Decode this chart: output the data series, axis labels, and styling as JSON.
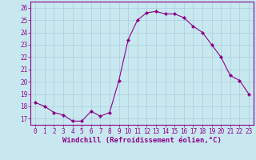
{
  "x": [
    0,
    1,
    2,
    3,
    4,
    5,
    6,
    7,
    8,
    9,
    10,
    11,
    12,
    13,
    14,
    15,
    16,
    17,
    18,
    19,
    20,
    21,
    22,
    23
  ],
  "y": [
    18.3,
    18.0,
    17.5,
    17.3,
    16.8,
    16.8,
    17.6,
    17.2,
    17.5,
    20.1,
    23.4,
    25.0,
    25.6,
    25.7,
    25.5,
    25.5,
    25.2,
    24.5,
    24.0,
    23.0,
    22.0,
    20.5,
    20.1,
    19.0
  ],
  "line_color": "#8b008b",
  "marker": "D",
  "marker_size": 2.0,
  "bg_color": "#c8e8f0",
  "grid_color": "#aaccdd",
  "xlabel": "Windchill (Refroidissement éolien,°C)",
  "ylabel": "",
  "xlim": [
    -0.5,
    23.5
  ],
  "ylim": [
    16.5,
    26.5
  ],
  "yticks": [
    17,
    18,
    19,
    20,
    21,
    22,
    23,
    24,
    25,
    26
  ],
  "xticks": [
    0,
    1,
    2,
    3,
    4,
    5,
    6,
    7,
    8,
    9,
    10,
    11,
    12,
    13,
    14,
    15,
    16,
    17,
    18,
    19,
    20,
    21,
    22,
    23
  ],
  "tick_fontsize": 5.5,
  "xlabel_fontsize": 6.5,
  "label_color": "#8b008b"
}
